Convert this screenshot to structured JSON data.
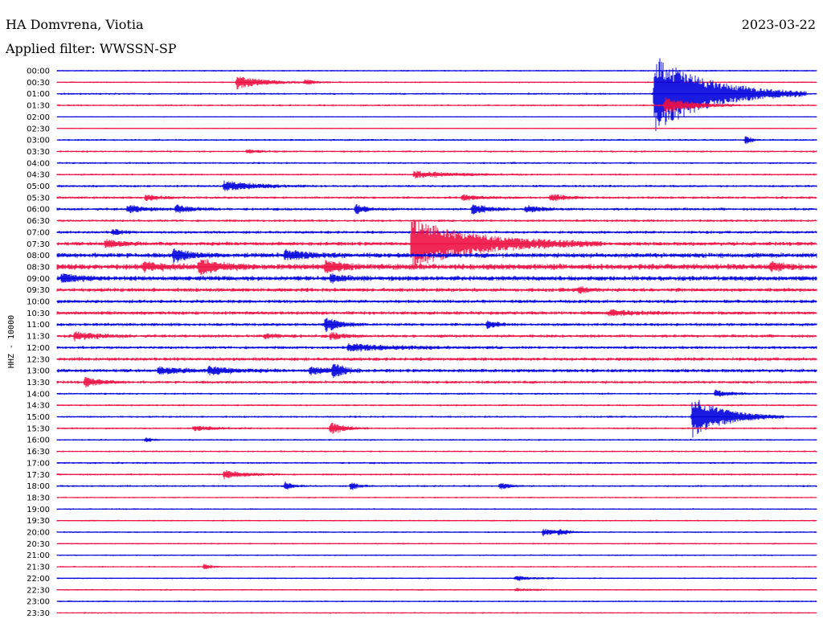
{
  "header": {
    "station": "HA Domvrena, Viotia",
    "date": "2023-03-22",
    "filter": "Applied filter: WWSSN-SP"
  },
  "chart_data": {
    "type": "line",
    "ylabel": "HHZ - 10000",
    "rows": [
      "00:00",
      "00:30",
      "01:00",
      "01:30",
      "02:00",
      "02:30",
      "03:00",
      "03:30",
      "04:00",
      "04:30",
      "05:00",
      "05:30",
      "06:00",
      "06:30",
      "07:00",
      "07:30",
      "08:00",
      "08:30",
      "09:00",
      "09:30",
      "10:00",
      "10:30",
      "11:00",
      "11:30",
      "12:00",
      "12:30",
      "13:00",
      "13:30",
      "14:00",
      "14:30",
      "15:00",
      "15:30",
      "16:00",
      "16:30",
      "17:00",
      "17:30",
      "18:00",
      "18:30",
      "19:00",
      "19:30",
      "20:00",
      "20:30",
      "21:00",
      "21:30",
      "22:00",
      "22:30",
      "23:00",
      "23:30"
    ],
    "trace_colors": [
      "#0000dd",
      "#ee1144"
    ],
    "noise_level": [
      0.8,
      0.8,
      1,
      1,
      0.6,
      0.6,
      1,
      1,
      1,
      1,
      1.2,
      1.3,
      1.4,
      1.3,
      1.5,
      2,
      2.5,
      3,
      2.5,
      2,
      1.8,
      1.8,
      1.6,
      1.6,
      1.5,
      1.8,
      1.8,
      1.5,
      1,
      1,
      1,
      1,
      0.9,
      0.9,
      1,
      1,
      1,
      0.8,
      0.8,
      0.8,
      0.8,
      0.8,
      0.8,
      0.8,
      0.8,
      0.8,
      0.8,
      0.8
    ],
    "events": [
      {
        "row": 1,
        "minute": 7.1,
        "amp": 8,
        "dur": 1.0
      },
      {
        "row": 1,
        "minute": 9.8,
        "amp": 3,
        "dur": 0.5
      },
      {
        "row": 2,
        "minute": 23.6,
        "amp": 50,
        "dur": 2.0
      },
      {
        "row": 3,
        "minute": 24.0,
        "amp": 10,
        "dur": 1.0
      },
      {
        "row": 6,
        "minute": 27.2,
        "amp": 6,
        "dur": 0.2
      },
      {
        "row": 7,
        "minute": 7.5,
        "amp": 2,
        "dur": 0.6
      },
      {
        "row": 9,
        "minute": 14.1,
        "amp": 4,
        "dur": 1.5
      },
      {
        "row": 10,
        "minute": 6.6,
        "amp": 6,
        "dur": 1.2
      },
      {
        "row": 11,
        "minute": 3.5,
        "amp": 4,
        "dur": 0.5
      },
      {
        "row": 11,
        "minute": 16.0,
        "amp": 3,
        "dur": 0.8
      },
      {
        "row": 11,
        "minute": 19.5,
        "amp": 5,
        "dur": 0.5
      },
      {
        "row": 12,
        "minute": 2.8,
        "amp": 5,
        "dur": 0.6
      },
      {
        "row": 12,
        "minute": 4.7,
        "amp": 5,
        "dur": 0.6
      },
      {
        "row": 12,
        "minute": 11.8,
        "amp": 6,
        "dur": 0.4
      },
      {
        "row": 12,
        "minute": 16.4,
        "amp": 7,
        "dur": 0.5
      },
      {
        "row": 12,
        "minute": 18.5,
        "amp": 4,
        "dur": 0.6
      },
      {
        "row": 14,
        "minute": 2.2,
        "amp": 4,
        "dur": 0.3
      },
      {
        "row": 15,
        "minute": 1.9,
        "amp": 5,
        "dur": 0.6
      },
      {
        "row": 15,
        "minute": 14.0,
        "amp": 30,
        "dur": 2.5
      },
      {
        "row": 16,
        "minute": 4.6,
        "amp": 8,
        "dur": 0.6
      },
      {
        "row": 16,
        "minute": 9.0,
        "amp": 6,
        "dur": 0.8
      },
      {
        "row": 17,
        "minute": 3.4,
        "amp": 4,
        "dur": 1.0
      },
      {
        "row": 17,
        "minute": 5.6,
        "amp": 8,
        "dur": 0.8
      },
      {
        "row": 17,
        "minute": 10.6,
        "amp": 8,
        "dur": 0.5
      },
      {
        "row": 17,
        "minute": 28.2,
        "amp": 5,
        "dur": 0.5
      },
      {
        "row": 18,
        "minute": 0.2,
        "amp": 5,
        "dur": 0.6
      },
      {
        "row": 18,
        "minute": 10.8,
        "amp": 4,
        "dur": 0.5
      },
      {
        "row": 19,
        "minute": 20.6,
        "amp": 4,
        "dur": 0.3
      },
      {
        "row": 21,
        "minute": 21.8,
        "amp": 3,
        "dur": 1.0
      },
      {
        "row": 22,
        "minute": 10.6,
        "amp": 10,
        "dur": 0.5
      },
      {
        "row": 22,
        "minute": 17.0,
        "amp": 5,
        "dur": 0.3
      },
      {
        "row": 23,
        "minute": 0.7,
        "amp": 5,
        "dur": 0.8
      },
      {
        "row": 23,
        "minute": 8.2,
        "amp": 3,
        "dur": 0.5
      },
      {
        "row": 23,
        "minute": 10.8,
        "amp": 4,
        "dur": 0.5
      },
      {
        "row": 24,
        "minute": 11.5,
        "amp": 4,
        "dur": 2.0
      },
      {
        "row": 26,
        "minute": 4.0,
        "amp": 4,
        "dur": 1.0
      },
      {
        "row": 26,
        "minute": 6.0,
        "amp": 4,
        "dur": 1.0
      },
      {
        "row": 26,
        "minute": 10.0,
        "amp": 5,
        "dur": 0.5
      },
      {
        "row": 26,
        "minute": 10.9,
        "amp": 10,
        "dur": 0.4
      },
      {
        "row": 27,
        "minute": 1.1,
        "amp": 5,
        "dur": 0.6
      },
      {
        "row": 28,
        "minute": 26.0,
        "amp": 4,
        "dur": 0.6
      },
      {
        "row": 30,
        "minute": 25.1,
        "amp": 25,
        "dur": 1.2
      },
      {
        "row": 31,
        "minute": 5.4,
        "amp": 3,
        "dur": 0.8
      },
      {
        "row": 31,
        "minute": 10.8,
        "amp": 8,
        "dur": 0.5
      },
      {
        "row": 32,
        "minute": 3.5,
        "amp": 3,
        "dur": 0.2
      },
      {
        "row": 35,
        "minute": 6.6,
        "amp": 5,
        "dur": 0.8
      },
      {
        "row": 36,
        "minute": 9.0,
        "amp": 5,
        "dur": 0.3
      },
      {
        "row": 36,
        "minute": 11.6,
        "amp": 5,
        "dur": 0.3
      },
      {
        "row": 36,
        "minute": 17.5,
        "amp": 5,
        "dur": 0.3
      },
      {
        "row": 40,
        "minute": 19.2,
        "amp": 5,
        "dur": 0.4
      },
      {
        "row": 40,
        "minute": 19.8,
        "amp": 3,
        "dur": 0.4
      },
      {
        "row": 43,
        "minute": 5.8,
        "amp": 3,
        "dur": 0.3
      },
      {
        "row": 44,
        "minute": 18.1,
        "amp": 3,
        "dur": 0.6
      },
      {
        "row": 45,
        "minute": 18.1,
        "amp": 2,
        "dur": 0.6
      }
    ]
  }
}
